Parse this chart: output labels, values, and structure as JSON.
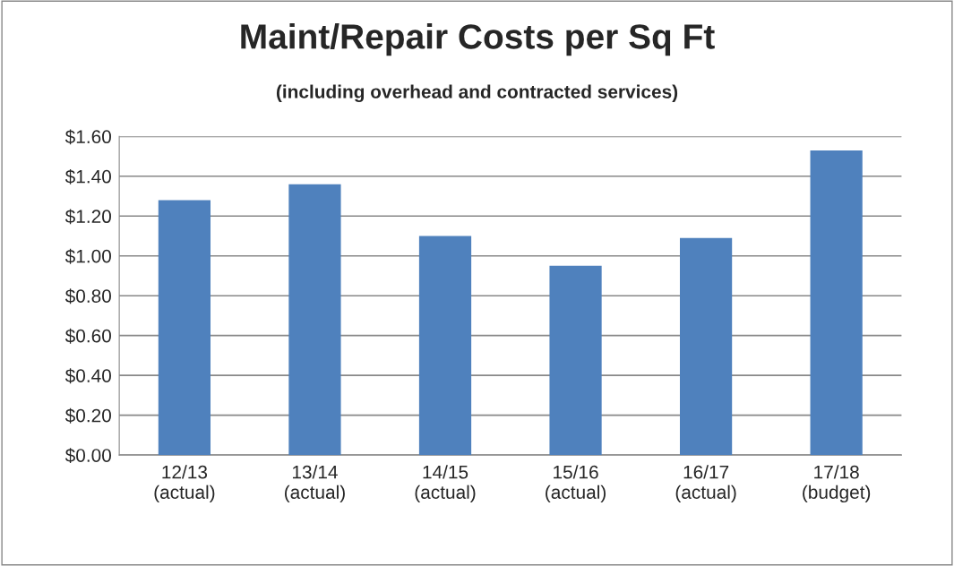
{
  "chart_data": {
    "type": "bar",
    "title": "Maint/Repair Costs per Sq Ft",
    "subtitle": "(including overhead and contracted services)",
    "categories": [
      "12/13\n(actual)",
      "13/14\n(actual)",
      "14/15\n(actual)",
      "15/16\n(actual)",
      "16/17\n(actual)",
      "17/18\n(budget)"
    ],
    "values": [
      1.28,
      1.36,
      1.1,
      0.95,
      1.09,
      1.53
    ],
    "color": "#4f81bd",
    "ylim": [
      0,
      1.6
    ],
    "yticks": [
      {
        "value": 0,
        "label": "$0.00"
      },
      {
        "value": 0.2,
        "label": "$0.20"
      },
      {
        "value": 0.4,
        "label": "$0.40"
      },
      {
        "value": 0.6,
        "label": "$0.60"
      },
      {
        "value": 0.8,
        "label": "$0.80"
      },
      {
        "value": 1.0,
        "label": "$1.00"
      },
      {
        "value": 1.2,
        "label": "$1.20"
      },
      {
        "value": 1.4,
        "label": "$1.40"
      },
      {
        "value": 1.6,
        "label": "$1.60"
      }
    ],
    "grid": "y",
    "legend": false
  }
}
